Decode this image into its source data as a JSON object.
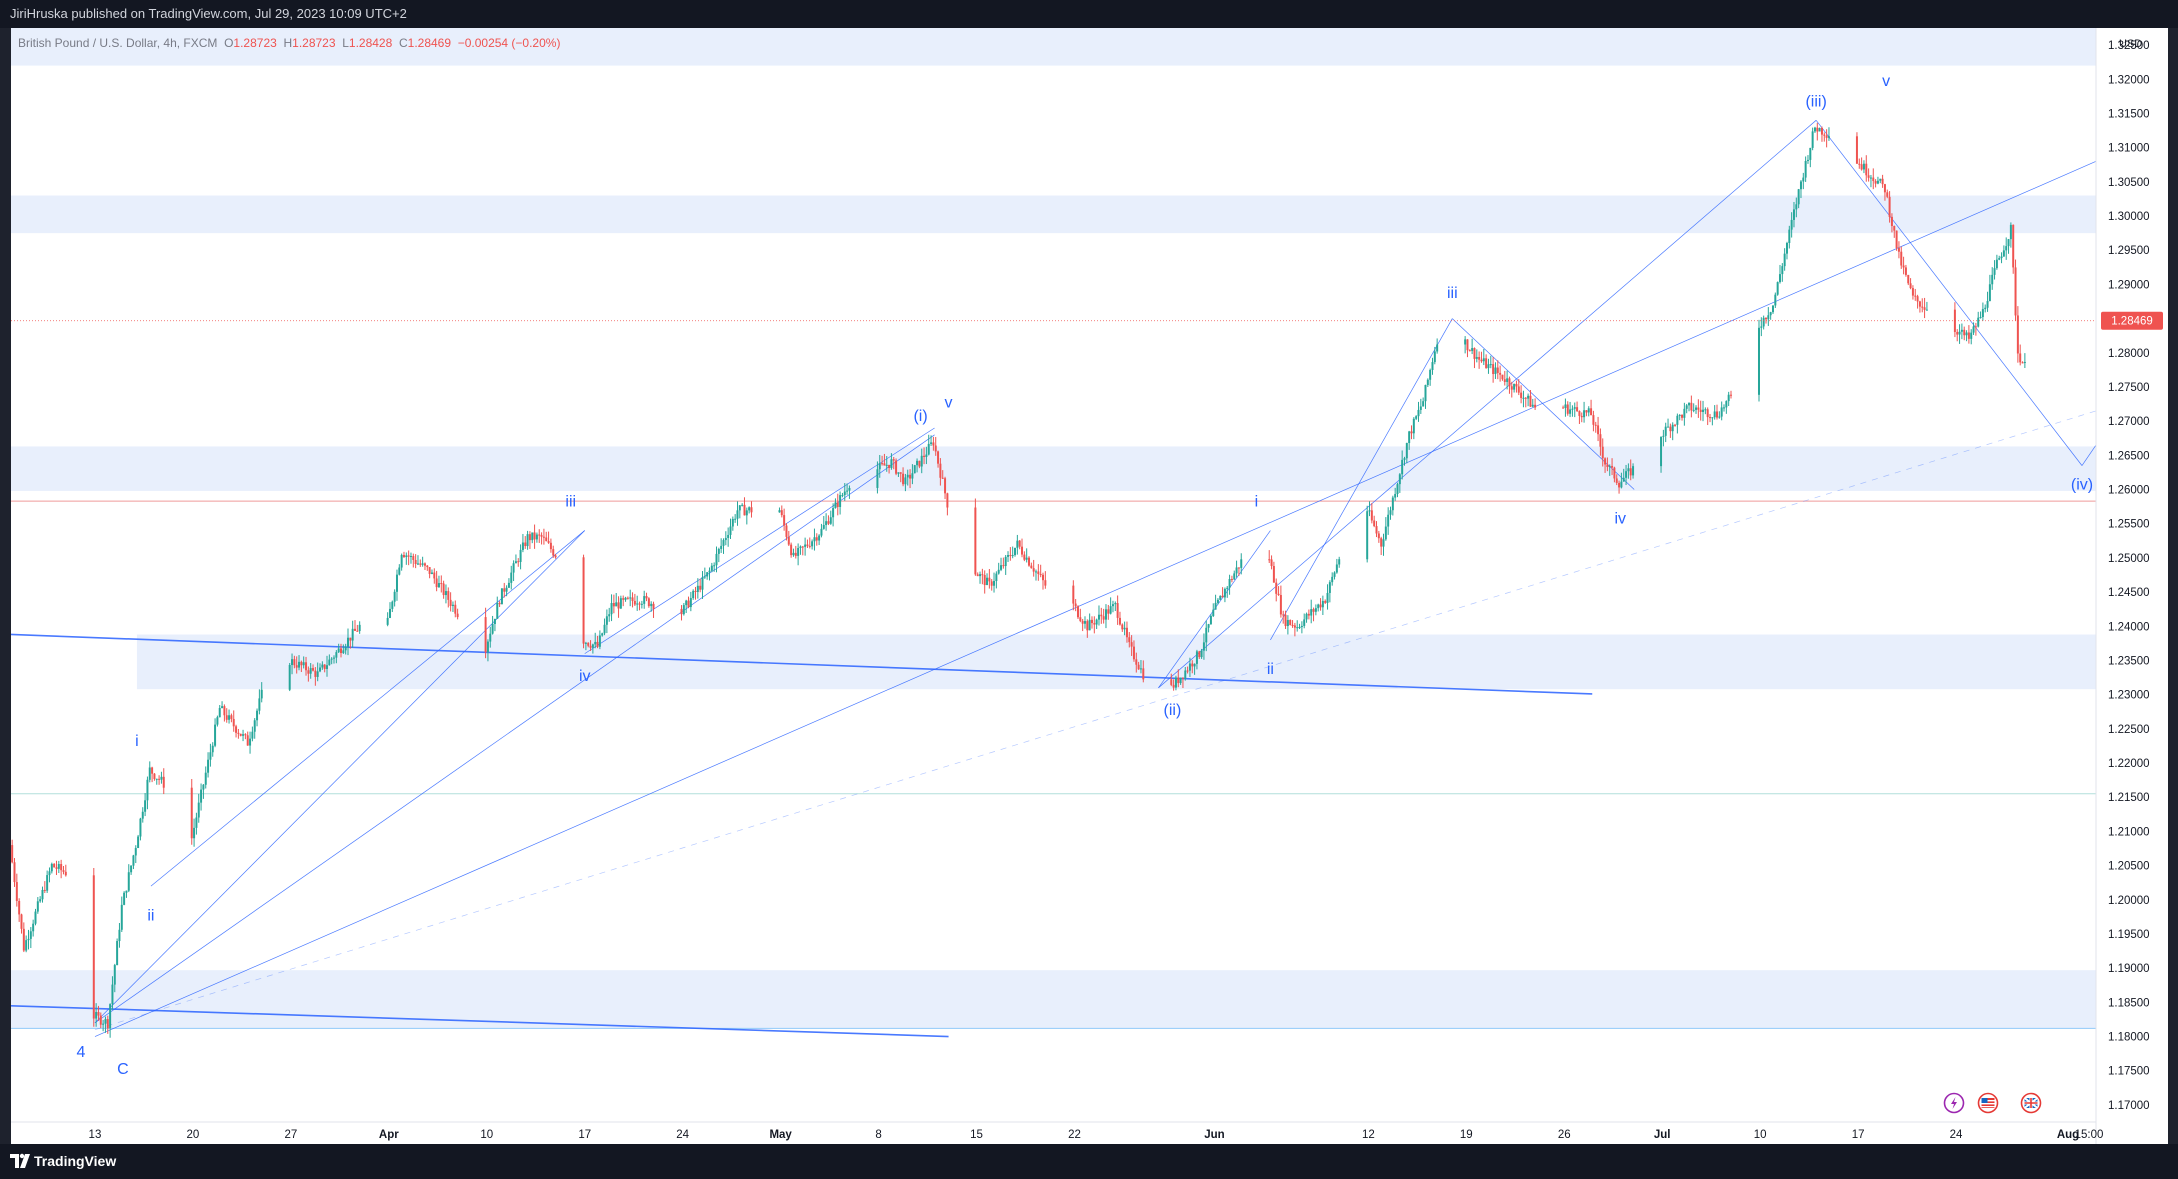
{
  "header": {
    "publish_line": "JiriHruska published on TradingView.com, Jul 29, 2023 10:09 UTC+2"
  },
  "legend": {
    "symbol": "British Pound / U.S. Dollar, 4h, FXCM",
    "o_label": "O",
    "o_value": "1.28723",
    "h_label": "H",
    "h_value": "1.28723",
    "l_label": "L",
    "l_value": "1.28428",
    "c_label": "C",
    "c_value": "1.28469",
    "change": "−0.00254 (−0.20%)"
  },
  "footer": {
    "brand": "TradingView"
  },
  "colors": {
    "up": "#26a69a",
    "down": "#ef5350",
    "zone": "#e8effc",
    "wave_line": "#2962ff",
    "label": "#2962ff",
    "price_tag": "#ef5350"
  },
  "icons": [
    "lightning-icon",
    "us-flag-icon",
    "uk-flag-icon"
  ],
  "chart_data": {
    "type": "candlestick",
    "symbol": "GBPUSD",
    "timeframe": "4h",
    "currency": "USD",
    "ylim": [
      1.1675,
      1.3275
    ],
    "y_ticks": [
      "1.32500",
      "1.32000",
      "1.31500",
      "1.31000",
      "1.30500",
      "1.30000",
      "1.29500",
      "1.29000",
      "1.28500",
      "1.28000",
      "1.27500",
      "1.27000",
      "1.26500",
      "1.26000",
      "1.25500",
      "1.25000",
      "1.24500",
      "1.24000",
      "1.23500",
      "1.23000",
      "1.22500",
      "1.22000",
      "1.21500",
      "1.21000",
      "1.20500",
      "1.20000",
      "1.19500",
      "1.19000",
      "1.18500",
      "1.18000",
      "1.17500",
      "1.17000"
    ],
    "x_start": "2023-03-07",
    "x_end": "2023-08-03",
    "x_ticks": [
      {
        "date": "2023-03-13",
        "label": "13",
        "bold": false
      },
      {
        "date": "2023-03-20",
        "label": "20",
        "bold": false
      },
      {
        "date": "2023-03-27",
        "label": "27",
        "bold": false
      },
      {
        "date": "2023-04-03",
        "label": "Apr",
        "bold": true
      },
      {
        "date": "2023-04-10",
        "label": "10",
        "bold": false
      },
      {
        "date": "2023-04-17",
        "label": "17",
        "bold": false
      },
      {
        "date": "2023-04-24",
        "label": "24",
        "bold": false
      },
      {
        "date": "2023-05-01",
        "label": "May",
        "bold": true
      },
      {
        "date": "2023-05-08",
        "label": "8",
        "bold": false
      },
      {
        "date": "2023-05-15",
        "label": "15",
        "bold": false
      },
      {
        "date": "2023-05-22",
        "label": "22",
        "bold": false
      },
      {
        "date": "2023-06-01",
        "label": "Jun",
        "bold": true
      },
      {
        "date": "2023-06-12",
        "label": "12",
        "bold": false
      },
      {
        "date": "2023-06-19",
        "label": "19",
        "bold": false
      },
      {
        "date": "2023-06-26",
        "label": "26",
        "bold": false
      },
      {
        "date": "2023-07-03",
        "label": "Jul",
        "bold": true
      },
      {
        "date": "2023-07-10",
        "label": "10",
        "bold": false
      },
      {
        "date": "2023-07-17",
        "label": "17",
        "bold": false
      },
      {
        "date": "2023-07-24",
        "label": "24",
        "bold": false
      },
      {
        "date": "2023-08-01",
        "label": "Aug",
        "bold": true
      },
      {
        "date": "2023-08-02",
        "label": "15:00",
        "bold": false
      }
    ],
    "last_price": 1.28469,
    "last_price_label": "1.28469",
    "price_path": [
      [
        "2023-03-07",
        1.208
      ],
      [
        "2023-03-08",
        1.193
      ],
      [
        "2023-03-10",
        1.205
      ],
      [
        "2023-03-11",
        1.204
      ],
      [
        "2023-03-13",
        1.183
      ],
      [
        "2023-03-14",
        1.182
      ],
      [
        "2023-03-15",
        1.199
      ],
      [
        "2023-03-16",
        1.208
      ],
      [
        "2023-03-17",
        1.219
      ],
      [
        "2023-03-18",
        1.217
      ],
      [
        "2023-03-19",
        1.202
      ],
      [
        "2023-03-20",
        1.209
      ],
      [
        "2023-03-22",
        1.228
      ],
      [
        "2023-03-24",
        1.223
      ],
      [
        "2023-03-25",
        1.23
      ],
      [
        "2023-03-26",
        1.221
      ],
      [
        "2023-03-27",
        1.235
      ],
      [
        "2023-03-29",
        1.233
      ],
      [
        "2023-04-01",
        1.24
      ],
      [
        "2023-04-02",
        1.23
      ],
      [
        "2023-04-04",
        1.251
      ],
      [
        "2023-04-06",
        1.248
      ],
      [
        "2023-04-08",
        1.242
      ],
      [
        "2023-04-10",
        1.237
      ],
      [
        "2023-04-11",
        1.244
      ],
      [
        "2023-04-13",
        1.253
      ],
      [
        "2023-04-14",
        1.253
      ],
      [
        "2023-04-16",
        1.248
      ],
      [
        "2023-04-17",
        1.238
      ],
      [
        "2023-04-18",
        1.237
      ],
      [
        "2023-04-19",
        1.243
      ],
      [
        "2023-04-21",
        1.244
      ],
      [
        "2023-04-24",
        1.242
      ],
      [
        "2023-04-26",
        1.248
      ],
      [
        "2023-04-28",
        1.257
      ],
      [
        "2023-05-01",
        1.257
      ],
      [
        "2023-05-02",
        1.25
      ],
      [
        "2023-05-04",
        1.254
      ],
      [
        "2023-05-06",
        1.261
      ],
      [
        "2023-05-09",
        1.264
      ],
      [
        "2023-05-10",
        1.261
      ],
      [
        "2023-05-12",
        1.267
      ],
      [
        "2023-05-13",
        1.258
      ],
      [
        "2023-05-15",
        1.248
      ],
      [
        "2023-05-16",
        1.246
      ],
      [
        "2023-05-18",
        1.252
      ],
      [
        "2023-05-20",
        1.246
      ],
      [
        "2023-05-22",
        1.243
      ],
      [
        "2023-05-23",
        1.24
      ],
      [
        "2023-05-25",
        1.243
      ],
      [
        "2023-05-26",
        1.237
      ],
      [
        "2023-05-27",
        1.233
      ],
      [
        "2023-05-29",
        1.231
      ],
      [
        "2023-05-31",
        1.236
      ],
      [
        "2023-06-01",
        1.242
      ],
      [
        "2023-06-02",
        1.246
      ],
      [
        "2023-06-04",
        1.253
      ],
      [
        "2023-06-05",
        1.25
      ],
      [
        "2023-06-06",
        1.241
      ],
      [
        "2023-06-07",
        1.24
      ],
      [
        "2023-06-09",
        1.244
      ],
      [
        "2023-06-11",
        1.256
      ],
      [
        "2023-06-12",
        1.257
      ],
      [
        "2023-06-13",
        1.252
      ],
      [
        "2023-06-14",
        1.26
      ],
      [
        "2023-06-15",
        1.268
      ],
      [
        "2023-06-16",
        1.273
      ],
      [
        "2023-06-17",
        1.282
      ],
      [
        "2023-06-18",
        1.284
      ],
      [
        "2023-06-20",
        1.279
      ],
      [
        "2023-06-22",
        1.276
      ],
      [
        "2023-06-24",
        1.272
      ],
      [
        "2023-06-26",
        1.272
      ],
      [
        "2023-06-28",
        1.271
      ],
      [
        "2023-06-29",
        1.264
      ],
      [
        "2023-06-30",
        1.261
      ],
      [
        "2023-07-01",
        1.263
      ],
      [
        "2023-07-03",
        1.268
      ],
      [
        "2023-07-05",
        1.272
      ],
      [
        "2023-07-07",
        1.271
      ],
      [
        "2023-07-09",
        1.276
      ],
      [
        "2023-07-10",
        1.284
      ],
      [
        "2023-07-11",
        1.287
      ],
      [
        "2023-07-12",
        1.296
      ],
      [
        "2023-07-13",
        1.305
      ],
      [
        "2023-07-14",
        1.313
      ],
      [
        "2023-07-15",
        1.312
      ],
      [
        "2023-07-17",
        1.308
      ],
      [
        "2023-07-19",
        1.304
      ],
      [
        "2023-07-20",
        1.294
      ],
      [
        "2023-07-21",
        1.288
      ],
      [
        "2023-07-23",
        1.285
      ],
      [
        "2023-07-25",
        1.282
      ],
      [
        "2023-07-26",
        1.286
      ],
      [
        "2023-07-27",
        1.293
      ],
      [
        "2023-07-28",
        1.298
      ],
      [
        "2023-07-28T12:00",
        1.28
      ],
      [
        "2023-07-29",
        1.278
      ],
      [
        "2023-07-29T12:00",
        1.285
      ]
    ],
    "zones": [
      {
        "y1": 1.322,
        "y2": 1.328
      },
      {
        "y1": 1.2975,
        "y2": 1.303
      },
      {
        "y1": 1.2598,
        "y2": 1.2663
      },
      {
        "y1": 1.2308,
        "y2": 1.2388,
        "from": "2023-03-16"
      },
      {
        "y1": 1.1812,
        "y2": 1.1897
      }
    ],
    "hlines": [
      {
        "y": 1.2583,
        "color": "#ef9a9a"
      },
      {
        "y": 1.2155,
        "color": "#b2dfdb"
      },
      {
        "y": 1.1812,
        "color": "#90caf9"
      }
    ],
    "trendlines": [
      {
        "x1": "2023-03-07",
        "y1": 1.2388,
        "x2": "2023-06-28",
        "y2": 1.2301,
        "color": "#2962ff",
        "w": 1.6,
        "dash": false
      },
      {
        "x1": "2023-03-07",
        "y1": 1.1845,
        "x2": "2023-05-13",
        "y2": 1.18,
        "color": "#2962ff",
        "w": 1.6,
        "dash": false
      },
      {
        "x1": "2023-03-13",
        "y1": 1.18,
        "x2": "2023-08-03",
        "y2": 1.308,
        "color": "#2962ff",
        "w": 0.7,
        "dash": false
      },
      {
        "x1": "2023-03-13",
        "y1": 1.181,
        "x2": "2023-08-03",
        "y2": 1.2715,
        "color": "#2962ff",
        "w": 0.7,
        "dash": true
      },
      {
        "x1": "2023-03-13",
        "y1": 1.182,
        "x2": "2023-05-12",
        "y2": 1.268,
        "color": "#2962ff",
        "w": 0.7,
        "dash": false
      },
      {
        "x1": "2023-03-13",
        "y1": 1.182,
        "x2": "2023-04-17",
        "y2": 1.254,
        "color": "#2962ff",
        "w": 0.7,
        "dash": false
      },
      {
        "x1": "2023-03-17",
        "y1": 1.202,
        "x2": "2023-04-17",
        "y2": 1.254,
        "color": "#2962ff",
        "w": 0.7,
        "dash": false
      },
      {
        "x1": "2023-04-17",
        "y1": 1.236,
        "x2": "2023-05-12",
        "y2": 1.269,
        "color": "#2962ff",
        "w": 0.7,
        "dash": false
      },
      {
        "x1": "2023-05-28",
        "y1": 1.231,
        "x2": "2023-07-14",
        "y2": 1.314,
        "color": "#2962ff",
        "w": 0.7,
        "dash": false
      },
      {
        "x1": "2023-05-28",
        "y1": 1.231,
        "x2": "2023-06-05",
        "y2": 1.254,
        "color": "#2962ff",
        "w": 0.7,
        "dash": false
      },
      {
        "x1": "2023-06-05",
        "y1": 1.238,
        "x2": "2023-06-18",
        "y2": 1.285,
        "color": "#2962ff",
        "w": 0.7,
        "dash": false
      },
      {
        "x1": "2023-06-18",
        "y1": 1.285,
        "x2": "2023-07-01",
        "y2": 1.26,
        "color": "#2962ff",
        "w": 0.7,
        "dash": false
      },
      {
        "x1": "2023-07-14",
        "y1": 1.314,
        "x2": "2023-08-02",
        "y2": 1.2635,
        "color": "#2962ff",
        "w": 0.7,
        "dash": false
      },
      {
        "x1": "2023-08-02",
        "y1": 1.2635,
        "x2": "2023-08-03",
        "y2": 1.2665,
        "color": "#2962ff",
        "w": 0.7,
        "dash": false
      }
    ],
    "wave_labels": [
      {
        "text": "4",
        "x": "2023-03-12",
        "y": 1.177
      },
      {
        "text": "C",
        "x": "2023-03-15",
        "y": 1.1745
      },
      {
        "text": "i",
        "x": "2023-03-16",
        "y": 1.2225
      },
      {
        "text": "ii",
        "x": "2023-03-17",
        "y": 1.197
      },
      {
        "text": "iii",
        "x": "2023-04-16",
        "y": 1.2575
      },
      {
        "text": "iv",
        "x": "2023-04-17",
        "y": 1.232
      },
      {
        "text": "(i)",
        "x": "2023-05-11",
        "y": 1.27
      },
      {
        "text": "v",
        "x": "2023-05-13",
        "y": 1.272
      },
      {
        "text": "(ii)",
        "x": "2023-05-29",
        "y": 1.227
      },
      {
        "text": "i",
        "x": "2023-06-04",
        "y": 1.2575
      },
      {
        "text": "ii",
        "x": "2023-06-05",
        "y": 1.233
      },
      {
        "text": "iii",
        "x": "2023-06-18",
        "y": 1.288
      },
      {
        "text": "iv",
        "x": "2023-06-30",
        "y": 1.255
      },
      {
        "text": "(iii)",
        "x": "2023-07-14",
        "y": 1.316
      },
      {
        "text": "v",
        "x": "2023-07-19",
        "y": 1.319
      },
      {
        "text": "(iv)",
        "x": "2023-08-02",
        "y": 1.26
      }
    ]
  }
}
